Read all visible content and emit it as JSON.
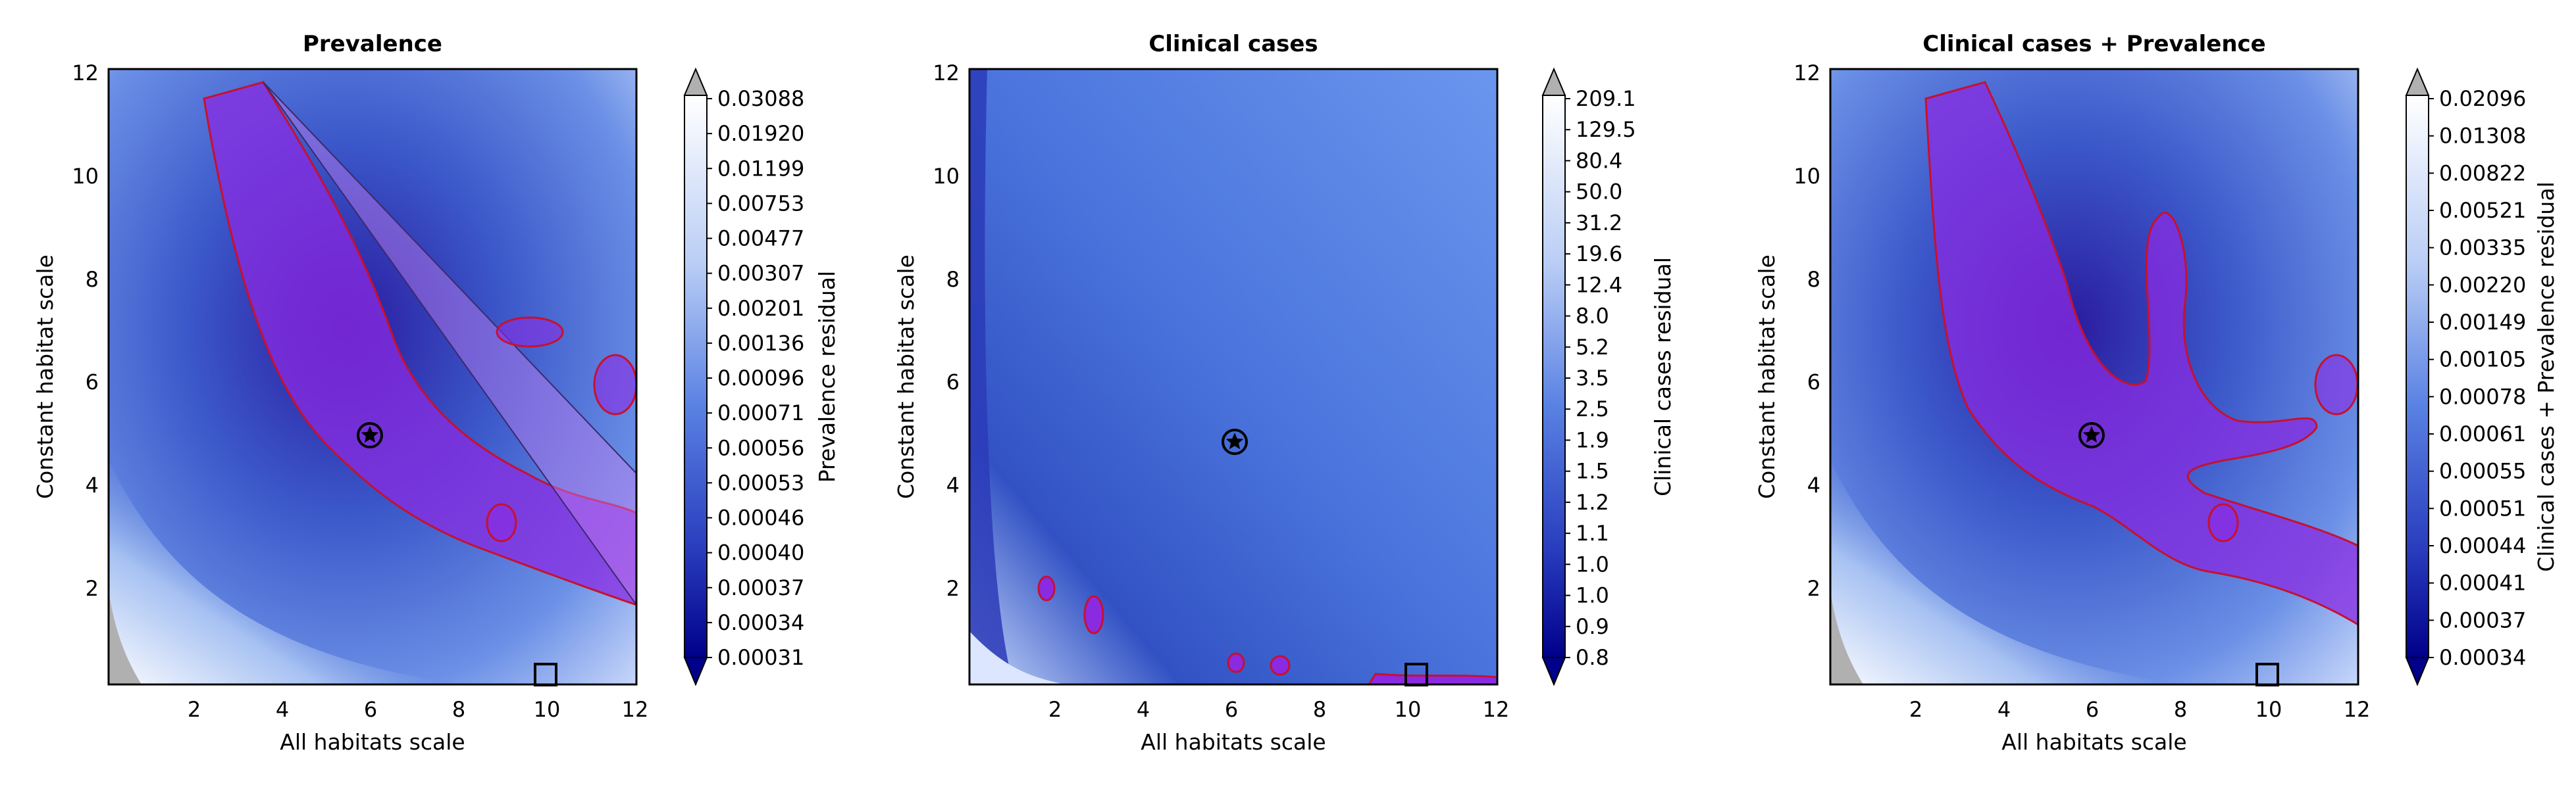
{
  "chart_data": [
    {
      "type": "heatmap",
      "title": "Prevalence",
      "xlabel": "All habitats scale",
      "ylabel": "Constant habitat scale",
      "xlim": [
        0.1,
        12.1
      ],
      "ylim": [
        0.1,
        12.1
      ],
      "xticks": [
        "2",
        "4",
        "6",
        "8",
        "10",
        "12"
      ],
      "yticks": [
        "2",
        "4",
        "6",
        "8",
        "10",
        "12"
      ],
      "colorbar_label": "Prevalence residual",
      "colorbar_ticks": [
        "0.03088",
        "0.01920",
        "0.01199",
        "0.00753",
        "0.00477",
        "0.00307",
        "0.00201",
        "0.00136",
        "0.00096",
        "0.00071",
        "0.00056",
        "0.00053",
        "0.00046",
        "0.00040",
        "0.00037",
        "0.00034",
        "0.00031"
      ],
      "markers": {
        "star": {
          "x": 6,
          "y": 5
        },
        "square": {
          "x": 10,
          "y": 0.3
        }
      },
      "minimum_center": {
        "x": 5.5,
        "y": 6
      }
    },
    {
      "type": "heatmap",
      "title": "Clinical cases",
      "xlabel": "All habitats scale",
      "ylabel": "Constant habitat scale",
      "xlim": [
        0.1,
        12.1
      ],
      "ylim": [
        0.1,
        12.1
      ],
      "xticks": [
        "2",
        "4",
        "6",
        "8",
        "10",
        "12"
      ],
      "yticks": [
        "2",
        "4",
        "6",
        "8",
        "10",
        "12"
      ],
      "colorbar_label": "Clinical cases residual",
      "colorbar_ticks": [
        "209.1",
        "129.5",
        "80.4",
        "50.0",
        "31.2",
        "19.6",
        "12.4",
        "8.0",
        "5.2",
        "3.5",
        "2.5",
        "1.9",
        "1.5",
        "1.2",
        "1.1",
        "1.0",
        "1.0",
        "0.9",
        "0.8"
      ],
      "markers": {
        "star": {
          "x": 6,
          "y": 5
        },
        "square": {
          "x": 10,
          "y": 0.3
        }
      }
    },
    {
      "type": "heatmap",
      "title": "Clinical cases + Prevalence",
      "xlabel": "All habitats scale",
      "ylabel": "Constant habitat scale",
      "xlim": [
        0.1,
        12.1
      ],
      "ylim": [
        0.1,
        12.1
      ],
      "xticks": [
        "2",
        "4",
        "6",
        "8",
        "10",
        "12"
      ],
      "yticks": [
        "2",
        "4",
        "6",
        "8",
        "10",
        "12"
      ],
      "colorbar_label": "Clinical cases + Prevalence residual",
      "colorbar_ticks": [
        "0.02096",
        "0.01308",
        "0.00822",
        "0.00521",
        "0.00335",
        "0.00220",
        "0.00149",
        "0.00105",
        "0.00078",
        "0.00061",
        "0.00055",
        "0.00051",
        "0.00044",
        "0.00041",
        "0.00037",
        "0.00034"
      ],
      "markers": {
        "star": {
          "x": 6,
          "y": 5
        },
        "square": {
          "x": 10,
          "y": 0.3
        }
      }
    }
  ],
  "colors": {
    "deep": "#00008b",
    "mid": "#4169e1",
    "light": "#e8f0ff",
    "highlight": "#9b30d9",
    "contour": "#c8102e",
    "extend_top": "#b0b0b0"
  }
}
